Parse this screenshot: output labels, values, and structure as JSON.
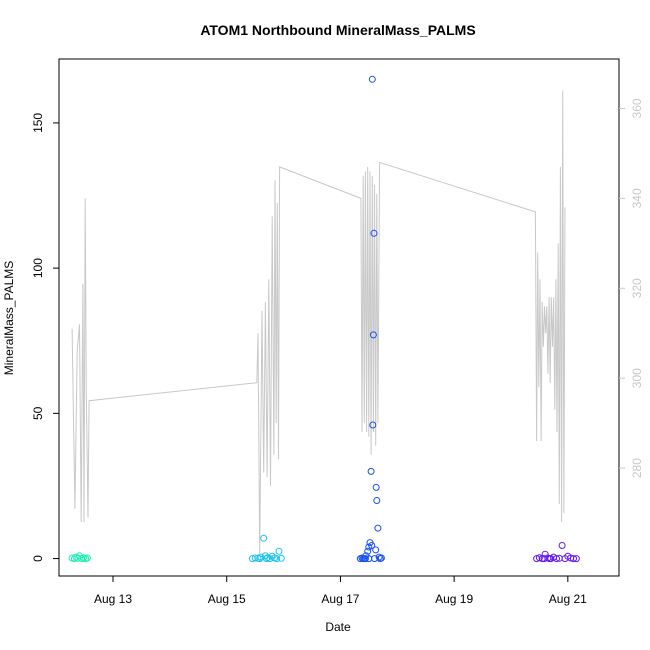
{
  "chart_data": {
    "type": "scatter",
    "title": "ATOM1 Northbound MineralMass_PALMS",
    "xlabel": "Date",
    "ylabel": "MineralMass_PALMS",
    "x_unit": "days since Aug 12 00:00",
    "xlim": [
      0.05,
      9.9
    ],
    "ylim": [
      -6,
      172
    ],
    "x_ticks": [
      {
        "x": 1,
        "label": "Aug 13"
      },
      {
        "x": 3,
        "label": "Aug 15"
      },
      {
        "x": 5,
        "label": "Aug 17"
      },
      {
        "x": 7,
        "label": "Aug 19"
      },
      {
        "x": 9,
        "label": "Aug 21"
      }
    ],
    "y_ticks": [
      0,
      50,
      100,
      150
    ],
    "y2_lim": [
      256,
      371
    ],
    "y2_ticks": [
      280,
      300,
      320,
      340,
      360
    ],
    "y2_color": "#c8c8c8",
    "grid": false,
    "legend": "none",
    "series": [
      {
        "color": "#19f0b4",
        "points": [
          [
            0.28,
            0.2
          ],
          [
            0.32,
            0.0
          ],
          [
            0.35,
            0.5
          ],
          [
            0.38,
            0.1
          ],
          [
            0.41,
            1.0
          ],
          [
            0.45,
            0.0
          ],
          [
            0.48,
            0.3
          ],
          [
            0.52,
            0.0
          ],
          [
            0.55,
            0.2
          ]
        ]
      },
      {
        "color": "#19c3f0",
        "points": [
          [
            3.45,
            0.0
          ],
          [
            3.5,
            0.2
          ],
          [
            3.55,
            0.1
          ],
          [
            3.6,
            0.5
          ],
          [
            3.65,
            7.0
          ],
          [
            3.68,
            1.0
          ],
          [
            3.72,
            0.3
          ],
          [
            3.76,
            0.0
          ],
          [
            3.8,
            0.8
          ],
          [
            3.84,
            0.2
          ],
          [
            3.88,
            0.0
          ],
          [
            3.92,
            2.5
          ],
          [
            3.96,
            0.1
          ],
          [
            3.58,
            0.0
          ],
          [
            3.7,
            0.0
          ]
        ]
      },
      {
        "color": "#1950f0",
        "points": [
          [
            5.35,
            0.0
          ],
          [
            5.38,
            0.2
          ],
          [
            5.42,
            0.0
          ],
          [
            5.45,
            1.0
          ],
          [
            5.48,
            2.5
          ],
          [
            5.5,
            4.0
          ],
          [
            5.52,
            5.5
          ],
          [
            5.54,
            30.0
          ],
          [
            5.55,
            4.5
          ],
          [
            5.56,
            165.0
          ],
          [
            5.57,
            46.0
          ],
          [
            5.58,
            77.0
          ],
          [
            5.59,
            112.0
          ],
          [
            5.6,
            0.0
          ],
          [
            5.62,
            3.0
          ],
          [
            5.63,
            24.5
          ],
          [
            5.64,
            20.0
          ],
          [
            5.66,
            10.5
          ],
          [
            5.68,
            0.5
          ],
          [
            5.7,
            0.0
          ],
          [
            5.72,
            0.2
          ],
          [
            5.44,
            0.0
          ],
          [
            5.4,
            0.0
          ],
          [
            5.5,
            0.0
          ]
        ]
      },
      {
        "color": "#6419f0",
        "points": [
          [
            8.45,
            0.0
          ],
          [
            8.5,
            0.3
          ],
          [
            8.55,
            0.0
          ],
          [
            8.6,
            1.5
          ],
          [
            8.65,
            0.2
          ],
          [
            8.7,
            0.0
          ],
          [
            8.75,
            0.5
          ],
          [
            8.8,
            0.0
          ],
          [
            8.85,
            0.1
          ],
          [
            8.9,
            4.5
          ],
          [
            8.95,
            0.0
          ],
          [
            9.0,
            0.8
          ],
          [
            9.05,
            0.2
          ],
          [
            9.1,
            0.0
          ],
          [
            9.15,
            0.0
          ],
          [
            8.58,
            0.0
          ],
          [
            8.68,
            0.0
          ]
        ]
      }
    ],
    "secondary_line": {
      "color": "#c8c8c8",
      "axis": "right",
      "points": [
        [
          0.28,
          311
        ],
        [
          0.33,
          271
        ],
        [
          0.37,
          306
        ],
        [
          0.41,
          312
        ],
        [
          0.44,
          268
        ],
        [
          0.47,
          321
        ],
        [
          0.49,
          268
        ],
        [
          0.51,
          340
        ],
        [
          0.53,
          297
        ],
        [
          0.56,
          269
        ],
        [
          0.58,
          295
        ],
        [
          3.53,
          299
        ],
        [
          3.55,
          310
        ],
        [
          3.58,
          261
        ],
        [
          3.62,
          315
        ],
        [
          3.65,
          279
        ],
        [
          3.68,
          317
        ],
        [
          3.71,
          278
        ],
        [
          3.74,
          322
        ],
        [
          3.77,
          276
        ],
        [
          3.8,
          336
        ],
        [
          3.83,
          283
        ],
        [
          3.85,
          344
        ],
        [
          3.87,
          290
        ],
        [
          3.89,
          339
        ],
        [
          3.91,
          282
        ],
        [
          3.93,
          347
        ],
        [
          5.36,
          340
        ],
        [
          5.38,
          288
        ],
        [
          5.4,
          345
        ],
        [
          5.42,
          290
        ],
        [
          5.44,
          346
        ],
        [
          5.46,
          288
        ],
        [
          5.48,
          347
        ],
        [
          5.5,
          287
        ],
        [
          5.52,
          346
        ],
        [
          5.54,
          283
        ],
        [
          5.56,
          345
        ],
        [
          5.58,
          288
        ],
        [
          5.6,
          343
        ],
        [
          5.62,
          285
        ],
        [
          5.64,
          341
        ],
        [
          5.66,
          290
        ],
        [
          5.69,
          348
        ],
        [
          8.43,
          337
        ],
        [
          8.45,
          286
        ],
        [
          8.47,
          328
        ],
        [
          8.49,
          298
        ],
        [
          8.51,
          322
        ],
        [
          8.53,
          286
        ],
        [
          8.55,
          317
        ],
        [
          8.57,
          307
        ],
        [
          8.59,
          316
        ],
        [
          8.61,
          310
        ],
        [
          8.63,
          316
        ],
        [
          8.65,
          301
        ],
        [
          8.67,
          318
        ],
        [
          8.69,
          299
        ],
        [
          8.71,
          318
        ],
        [
          8.73,
          307
        ],
        [
          8.75,
          318
        ],
        [
          8.77,
          293
        ],
        [
          8.79,
          322
        ],
        [
          8.81,
          288
        ],
        [
          8.83,
          330
        ],
        [
          8.85,
          272
        ],
        [
          8.87,
          347
        ],
        [
          8.89,
          268
        ],
        [
          8.91,
          364
        ],
        [
          8.93,
          270
        ],
        [
          8.95,
          338
        ]
      ]
    }
  }
}
